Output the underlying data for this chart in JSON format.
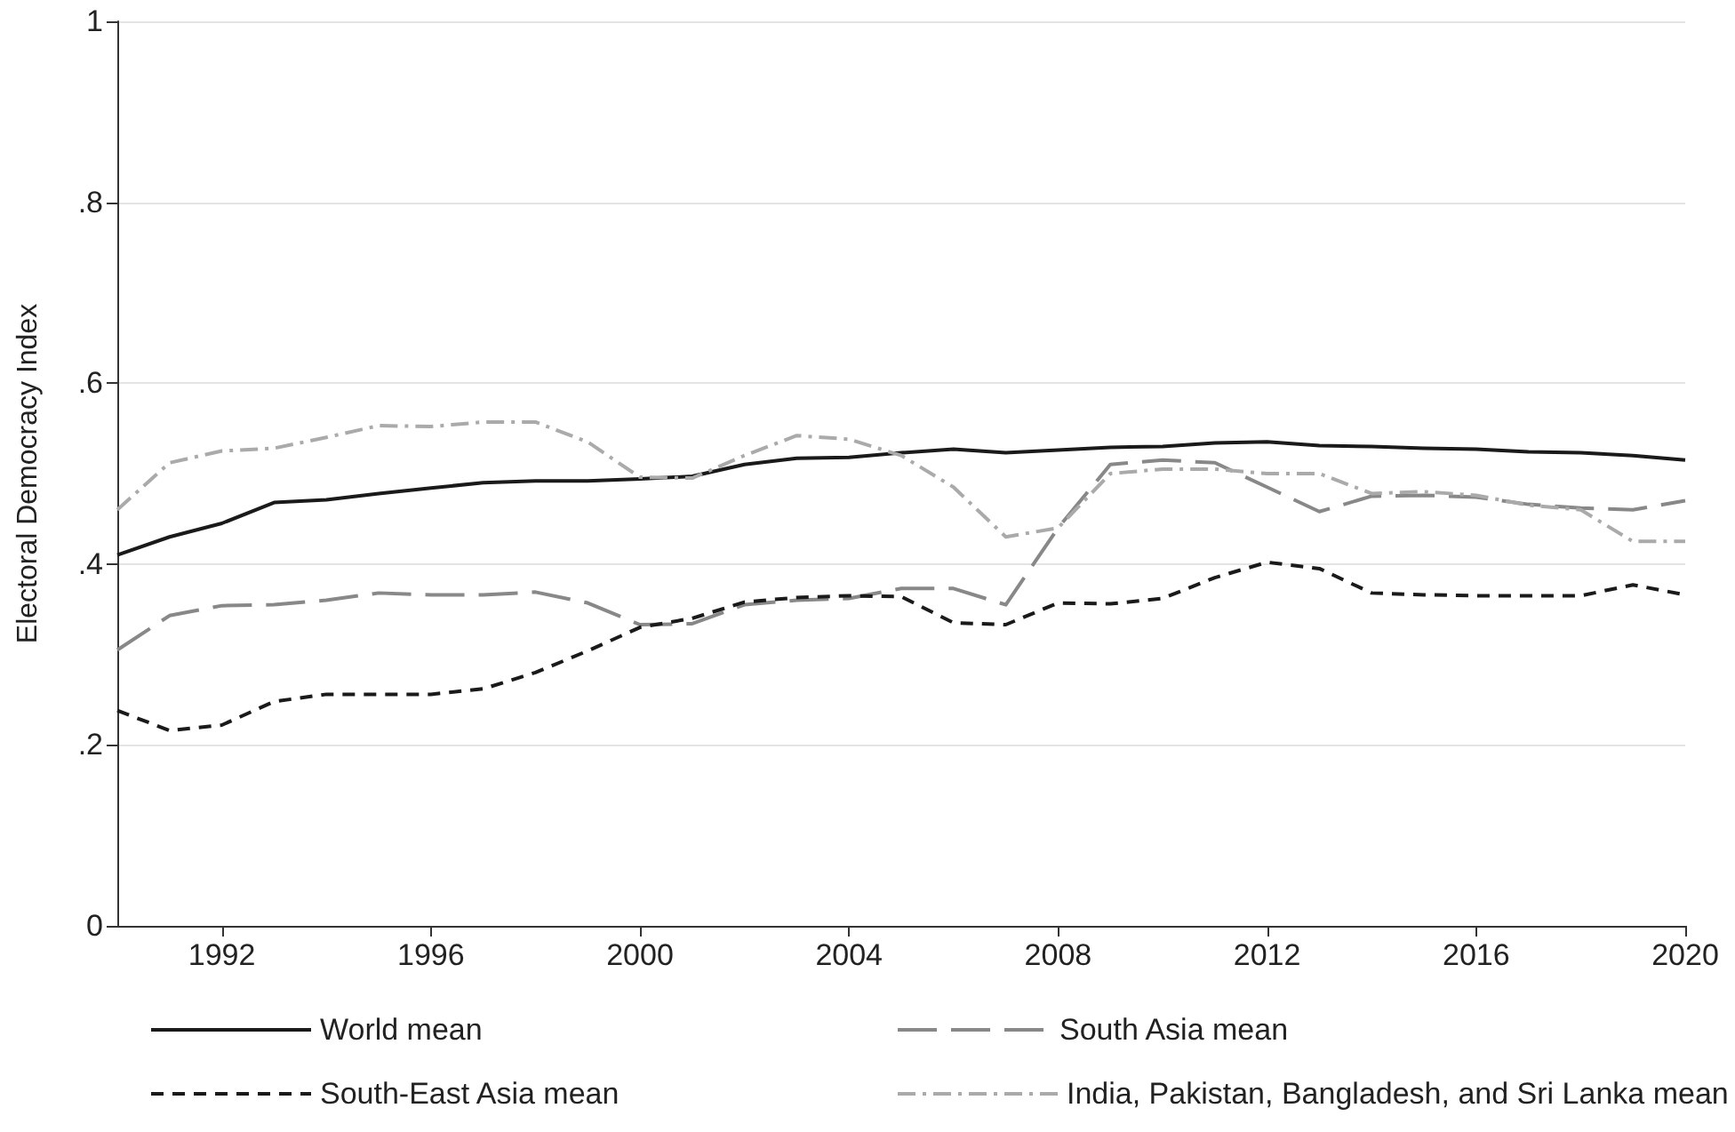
{
  "chart_data": {
    "type": "line",
    "ylabel": "Electoral Democracy Index",
    "x": [
      1990,
      1991,
      1992,
      1993,
      1994,
      1995,
      1996,
      1997,
      1998,
      1999,
      2000,
      2001,
      2002,
      2003,
      2004,
      2005,
      2006,
      2007,
      2008,
      2009,
      2010,
      2011,
      2012,
      2013,
      2014,
      2015,
      2016,
      2017,
      2018,
      2019,
      2020
    ],
    "xlim": [
      1990,
      2020
    ],
    "xticks": [
      1992,
      1996,
      2000,
      2004,
      2008,
      2012,
      2016,
      2020
    ],
    "ylim": [
      0,
      1
    ],
    "yticks": [
      0,
      {
        "value": 0.2,
        "label": ".2"
      },
      {
        "value": 0.4,
        "label": ".4"
      },
      {
        "value": 0.6,
        "label": ".6"
      },
      {
        "value": 0.8,
        "label": ".8"
      },
      1
    ],
    "grid": "y",
    "legend": "bottom",
    "marker": "none",
    "series": [
      {
        "name": "World mean",
        "color": "#1a1a1a",
        "line_style": "solid",
        "values": [
          0.41,
          0.43,
          0.445,
          0.468,
          0.471,
          0.478,
          0.484,
          0.49,
          0.492,
          0.492,
          0.494,
          0.497,
          0.51,
          0.517,
          0.518,
          0.523,
          0.527,
          0.523,
          0.526,
          0.529,
          0.53,
          0.534,
          0.535,
          0.531,
          0.53,
          0.528,
          0.527,
          0.524,
          0.523,
          0.52,
          0.515
        ]
      },
      {
        "name": "South Asia mean",
        "color": "#888888",
        "line_style": "dashed",
        "values": [
          0.305,
          0.343,
          0.354,
          0.355,
          0.36,
          0.368,
          0.366,
          0.366,
          0.369,
          0.357,
          0.333,
          0.334,
          0.355,
          0.36,
          0.362,
          0.373,
          0.373,
          0.355,
          0.44,
          0.51,
          0.515,
          0.512,
          0.485,
          0.458,
          0.475,
          0.476,
          0.474,
          0.466,
          0.462,
          0.46,
          0.47
        ]
      },
      {
        "name": "South-East Asia mean",
        "color": "#1a1a1a",
        "line_style": "dotted",
        "values": [
          0.238,
          0.216,
          0.222,
          0.248,
          0.256,
          0.256,
          0.256,
          0.262,
          0.28,
          0.304,
          0.33,
          0.34,
          0.358,
          0.363,
          0.365,
          0.364,
          0.335,
          0.333,
          0.357,
          0.356,
          0.362,
          0.385,
          0.402,
          0.395,
          0.368,
          0.366,
          0.365,
          0.365,
          0.365,
          0.377,
          0.366
        ]
      },
      {
        "name": "India, Pakistan, Bangladesh, and Sri Lanka mean",
        "color": "#aaaaaa",
        "line_style": "dashdot",
        "values": [
          0.46,
          0.512,
          0.525,
          0.528,
          0.54,
          0.553,
          0.552,
          0.557,
          0.557,
          0.535,
          0.496,
          0.495,
          0.52,
          0.542,
          0.538,
          0.52,
          0.485,
          0.43,
          0.44,
          0.5,
          0.505,
          0.505,
          0.5,
          0.5,
          0.478,
          0.48,
          0.476,
          0.465,
          0.46,
          0.425,
          0.425
        ]
      }
    ]
  }
}
